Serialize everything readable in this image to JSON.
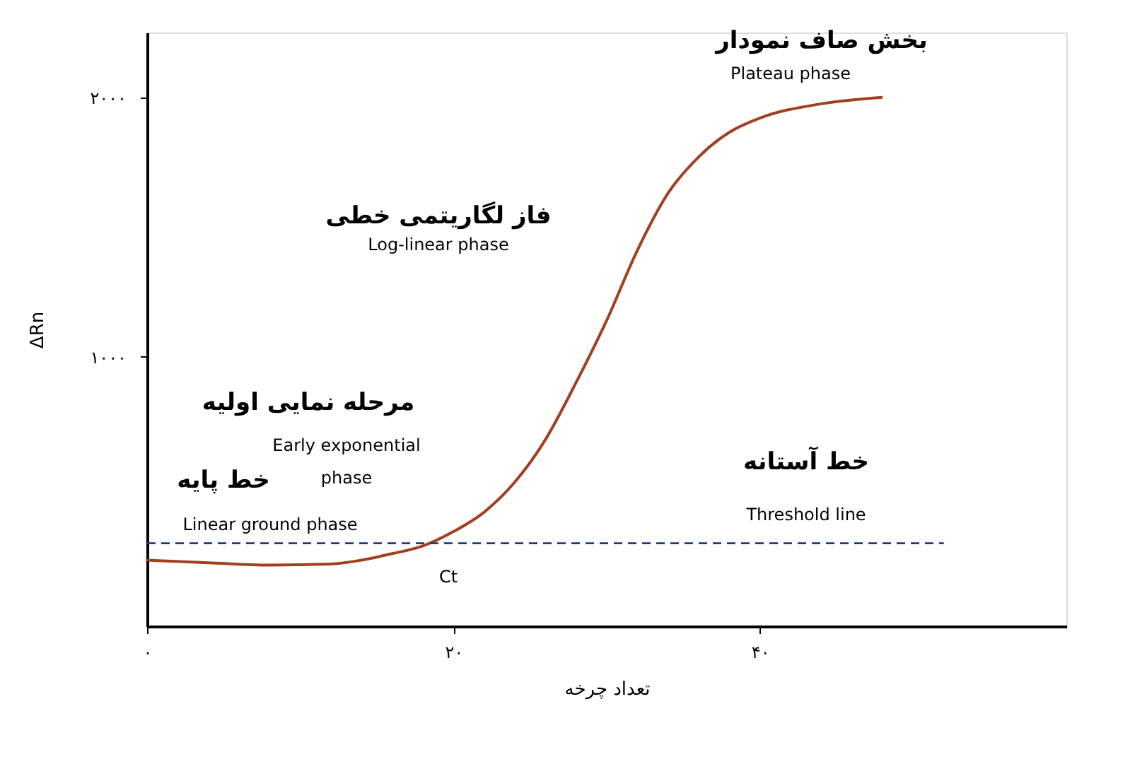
{
  "chart_data": {
    "type": "line",
    "xlabel": "تعداد چرخه",
    "ylabel": "ΔRn",
    "x": [
      0,
      4,
      8,
      12,
      14,
      16,
      18,
      20,
      22,
      24,
      26,
      28,
      30,
      32,
      34,
      36,
      38,
      40,
      44,
      48
    ],
    "series": [
      {
        "color": "#a0401e",
        "values": [
          215,
          205,
          196,
          200,
          215,
          240,
          270,
          325,
          400,
          516,
          680,
          900,
          1140,
          1410,
          1630,
          1770,
          1865,
          1920,
          1975,
          2000
        ]
      }
    ],
    "xlim": [
      0,
      60
    ],
    "ylim": [
      -40,
      2250
    ],
    "xticks": [
      {
        "value": 0,
        "label": "۰"
      },
      {
        "value": 20,
        "label": "۲۰"
      },
      {
        "value": 40,
        "label": "۴۰"
      }
    ],
    "yticks": [
      {
        "value": 1000,
        "label": "۱۰۰۰"
      },
      {
        "value": 2000,
        "label": "۲۰۰۰"
      }
    ],
    "ref_lines": [
      {
        "axis": "y",
        "value": 280,
        "color": "#1f3f7a",
        "line_style": "dashed"
      }
    ],
    "annotations": [
      "بخش صاف نمودار",
      "Plateau phase",
      "فاز لگاریتمی خطی",
      "Log-linear phase",
      "مرحله نمایی اولیه",
      "Early exponential",
      "phase",
      "خط پایه",
      "Linear ground phase",
      "خط آستانه",
      "Threshold line",
      "Ct"
    ],
    "grid": false,
    "marker": "none",
    "line_style": "solid"
  }
}
